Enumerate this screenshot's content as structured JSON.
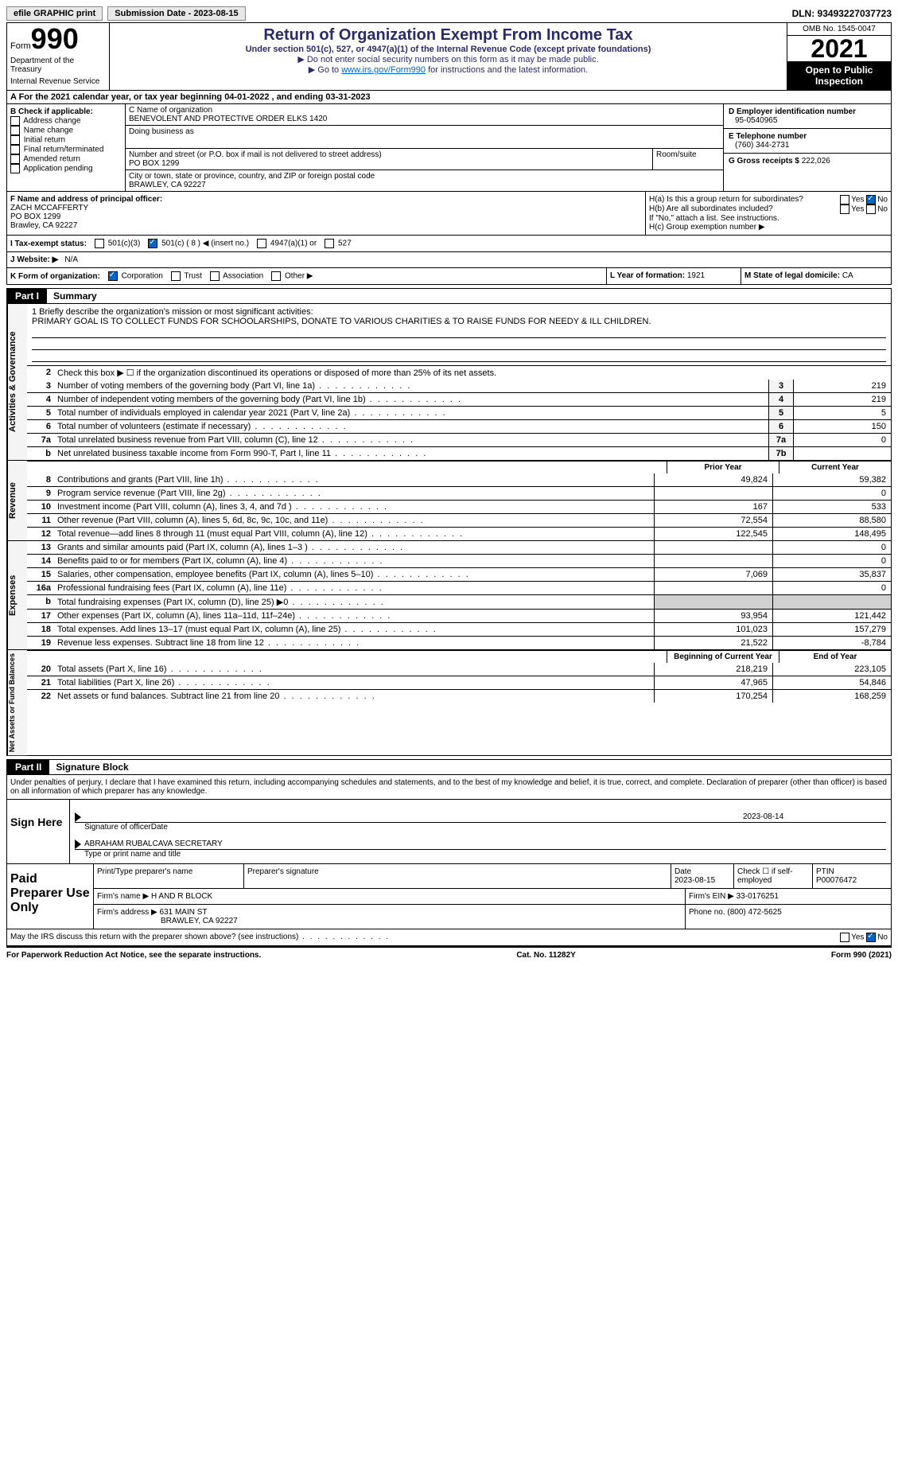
{
  "topbar": {
    "efile": "efile GRAPHIC print",
    "submission_label": "Submission Date - 2023-08-15",
    "dln": "DLN: 93493227037723"
  },
  "header": {
    "form_word": "Form",
    "form_num": "990",
    "title": "Return of Organization Exempt From Income Tax",
    "subtitle": "Under section 501(c), 527, or 4947(a)(1) of the Internal Revenue Code (except private foundations)",
    "ssn_note": "▶ Do not enter social security numbers on this form as it may be made public.",
    "goto": "▶ Go to",
    "goto_link": "www.irs.gov/Form990",
    "goto_suffix": "for instructions and the latest information.",
    "omb": "OMB No. 1545-0047",
    "year": "2021",
    "open_public": "Open to Public Inspection",
    "dept": "Department of the Treasury",
    "irs": "Internal Revenue Service"
  },
  "row_a": "A For the 2021 calendar year, or tax year beginning 04-01-2022   , and ending 03-31-2023",
  "section_b": {
    "b_label": "B Check if applicable:",
    "b_items": [
      "Address change",
      "Name change",
      "Initial return",
      "Final return/terminated",
      "Amended return",
      "Application pending"
    ],
    "c_name_label": "C Name of organization",
    "c_name": "BENEVOLENT AND PROTECTIVE ORDER ELKS 1420",
    "dba_label": "Doing business as",
    "street_label": "Number and street (or P.O. box if mail is not delivered to street address)",
    "room_label": "Room/suite",
    "street": "PO BOX 1299",
    "city_label": "City or town, state or province, country, and ZIP or foreign postal code",
    "city": "BRAWLEY, CA  92227",
    "d_label": "D Employer identification number",
    "d_val": "95-0540965",
    "e_label": "E Telephone number",
    "e_val": "(760) 344-2731",
    "g_label": "G Gross receipts $",
    "g_val": "222,026"
  },
  "section_f": {
    "f_label": "F Name and address of principal officer:",
    "f_name": "ZACH MCCAFFERTY",
    "f_street": "PO BOX 1299",
    "f_city": "Brawley, CA  92227",
    "ha_label": "H(a)  Is this a group return for subordinates?",
    "hb_label": "H(b)  Are all subordinates included?",
    "hb_note": "If \"No,\" attach a list. See instructions.",
    "hc_label": "H(c)  Group exemption number ▶"
  },
  "tax_status": {
    "i_label": "I   Tax-exempt status:",
    "opt1": "501(c)(3)",
    "opt2": "501(c) ( 8 ) ◀ (insert no.)",
    "opt3": "4947(a)(1) or",
    "opt4": "527"
  },
  "website": {
    "j_label": "J   Website: ▶",
    "j_val": "N/A"
  },
  "k_row": {
    "k_label": "K Form of organization:",
    "k_corp": "Corporation",
    "k_trust": "Trust",
    "k_assoc": "Association",
    "k_other": "Other ▶",
    "l_label": "L Year of formation:",
    "l_val": "1921",
    "m_label": "M State of legal domicile:",
    "m_val": "CA"
  },
  "part1": {
    "label": "Part I",
    "title": "Summary"
  },
  "mission": {
    "line1_label": "1   Briefly describe the organization's mission or most significant activities:",
    "text": "PRIMARY GOAL IS TO COLLECT FUNDS FOR SCHOOLARSHIPS, DONATE TO VARIOUS CHARITIES & TO RAISE FUNDS FOR NEEDY & ILL CHILDREN."
  },
  "gov": {
    "side": "Activities & Governance",
    "line2": "Check this box ▶ ☐ if the organization discontinued its operations or disposed of more than 25% of its net assets.",
    "rows": [
      {
        "n": "3",
        "d": "Number of voting members of the governing body (Part VI, line 1a)",
        "box": "3",
        "v": "219"
      },
      {
        "n": "4",
        "d": "Number of independent voting members of the governing body (Part VI, line 1b)",
        "box": "4",
        "v": "219"
      },
      {
        "n": "5",
        "d": "Total number of individuals employed in calendar year 2021 (Part V, line 2a)",
        "box": "5",
        "v": "5"
      },
      {
        "n": "6",
        "d": "Total number of volunteers (estimate if necessary)",
        "box": "6",
        "v": "150"
      },
      {
        "n": "7a",
        "d": "Total unrelated business revenue from Part VIII, column (C), line 12",
        "box": "7a",
        "v": "0"
      },
      {
        "n": "b",
        "d": "Net unrelated business taxable income from Form 990-T, Part I, line 11",
        "box": "7b",
        "v": ""
      }
    ]
  },
  "rev": {
    "side": "Revenue",
    "header_prior": "Prior Year",
    "header_curr": "Current Year",
    "rows": [
      {
        "n": "8",
        "d": "Contributions and grants (Part VIII, line 1h)",
        "p": "49,824",
        "c": "59,382"
      },
      {
        "n": "9",
        "d": "Program service revenue (Part VIII, line 2g)",
        "p": "",
        "c": "0"
      },
      {
        "n": "10",
        "d": "Investment income (Part VIII, column (A), lines 3, 4, and 7d )",
        "p": "167",
        "c": "533"
      },
      {
        "n": "11",
        "d": "Other revenue (Part VIII, column (A), lines 5, 6d, 8c, 9c, 10c, and 11e)",
        "p": "72,554",
        "c": "88,580"
      },
      {
        "n": "12",
        "d": "Total revenue—add lines 8 through 11 (must equal Part VIII, column (A), line 12)",
        "p": "122,545",
        "c": "148,495"
      }
    ]
  },
  "exp": {
    "side": "Expenses",
    "rows": [
      {
        "n": "13",
        "d": "Grants and similar amounts paid (Part IX, column (A), lines 1–3 )",
        "p": "",
        "c": "0"
      },
      {
        "n": "14",
        "d": "Benefits paid to or for members (Part IX, column (A), line 4)",
        "p": "",
        "c": "0"
      },
      {
        "n": "15",
        "d": "Salaries, other compensation, employee benefits (Part IX, column (A), lines 5–10)",
        "p": "7,069",
        "c": "35,837"
      },
      {
        "n": "16a",
        "d": "Professional fundraising fees (Part IX, column (A), line 11e)",
        "p": "",
        "c": "0"
      },
      {
        "n": "b",
        "d": "Total fundraising expenses (Part IX, column (D), line 25) ▶0",
        "p": "shaded",
        "c": "shaded"
      },
      {
        "n": "17",
        "d": "Other expenses (Part IX, column (A), lines 11a–11d, 11f–24e)",
        "p": "93,954",
        "c": "121,442"
      },
      {
        "n": "18",
        "d": "Total expenses. Add lines 13–17 (must equal Part IX, column (A), line 25)",
        "p": "101,023",
        "c": "157,279"
      },
      {
        "n": "19",
        "d": "Revenue less expenses. Subtract line 18 from line 12",
        "p": "21,522",
        "c": "-8,784"
      }
    ]
  },
  "net": {
    "side": "Net Assets or Fund Balances",
    "header_begin": "Beginning of Current Year",
    "header_end": "End of Year",
    "rows": [
      {
        "n": "20",
        "d": "Total assets (Part X, line 16)",
        "p": "218,219",
        "c": "223,105"
      },
      {
        "n": "21",
        "d": "Total liabilities (Part X, line 26)",
        "p": "47,965",
        "c": "54,846"
      },
      {
        "n": "22",
        "d": "Net assets or fund balances. Subtract line 21 from line 20",
        "p": "170,254",
        "c": "168,259"
      }
    ]
  },
  "part2": {
    "label": "Part II",
    "title": "Signature Block"
  },
  "sig": {
    "penalty": "Under penalties of perjury, I declare that I have examined this return, including accompanying schedules and statements, and to the best of my knowledge and belief, it is true, correct, and complete. Declaration of preparer (other than officer) is based on all information of which preparer has any knowledge.",
    "sign_here": "Sign Here",
    "sig_officer": "Signature of officer",
    "sig_date": "2023-08-14",
    "date_label": "Date",
    "name": "ABRAHAM RUBALCAVA  SECRETARY",
    "name_label": "Type or print name and title"
  },
  "prep": {
    "label": "Paid Preparer Use Only",
    "print_label": "Print/Type preparer's name",
    "sig_label": "Preparer's signature",
    "date_label": "Date",
    "date_val": "2023-08-15",
    "check_label": "Check ☐ if self-employed",
    "ptin_label": "PTIN",
    "ptin_val": "P00076472",
    "firm_name_label": "Firm's name    ▶",
    "firm_name": "H AND R BLOCK",
    "firm_ein_label": "Firm's EIN ▶",
    "firm_ein": "33-0176251",
    "firm_addr_label": "Firm's address ▶",
    "firm_addr1": "631 MAIN ST",
    "firm_addr2": "BRAWLEY, CA  92227",
    "phone_label": "Phone no.",
    "phone": "(800) 472-5625"
  },
  "discuss": "May the IRS discuss this return with the preparer shown above? (see instructions)",
  "footer": {
    "left": "For Paperwork Reduction Act Notice, see the separate instructions.",
    "mid": "Cat. No. 11282Y",
    "right": "Form 990 (2021)"
  },
  "yes": "Yes",
  "no": "No"
}
